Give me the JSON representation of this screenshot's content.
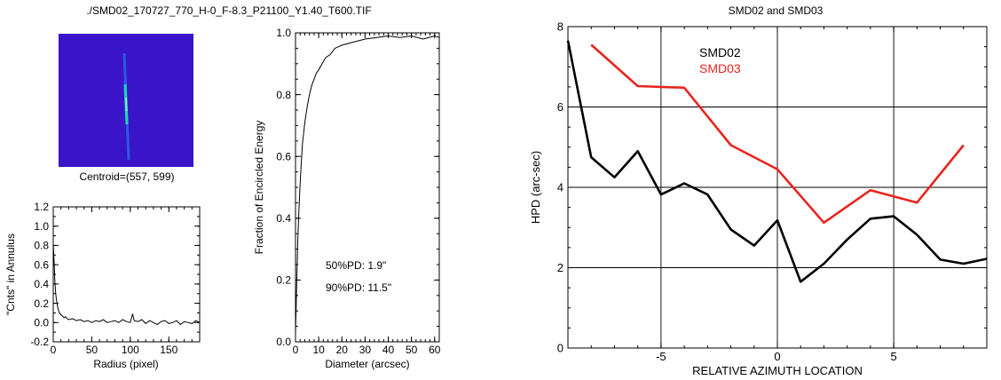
{
  "figure_title": "./SMD02_170727_770_H-0_F-8.3_P21100_Y1.40_T600.TIF",
  "image_panel": {
    "caption": "Centroid=(557, 599)",
    "colors": {
      "background": "#3a14c8",
      "streak": "#1fd6b4"
    }
  },
  "annotations": {
    "pd50": "50%PD:  1.9\"",
    "pd90": "90%PD: 11.5\""
  },
  "chart_data": [
    {
      "id": "annulus",
      "type": "line",
      "title": "",
      "xlabel": "Radius (pixel)",
      "ylabel": "\"Cnts\" in Annulus",
      "xlim": [
        0,
        190
      ],
      "ylim": [
        -0.2,
        1.2
      ],
      "xticks": [
        0,
        50,
        100,
        150
      ],
      "yticks": [
        -0.2,
        0.0,
        0.2,
        0.4,
        0.6,
        0.8,
        1.0,
        1.2
      ],
      "ytick_labels": [
        "-0.2",
        "0.0",
        "0.2",
        "0.4",
        "0.6",
        "0.8",
        "1.0",
        "1.2"
      ],
      "grid": false,
      "series": [
        {
          "color": "#000000",
          "x": [
            0,
            1,
            2,
            3,
            4,
            5,
            6,
            7,
            8,
            9,
            10,
            12,
            14,
            16,
            18,
            20,
            25,
            30,
            35,
            40,
            45,
            50,
            55,
            60,
            65,
            70,
            75,
            80,
            85,
            90,
            95,
            100,
            103,
            105,
            110,
            115,
            120,
            125,
            130,
            135,
            140,
            145,
            150,
            155,
            160,
            165,
            170,
            175,
            180,
            185,
            190
          ],
          "y": [
            0.82,
            0.65,
            0.45,
            0.32,
            0.24,
            0.2,
            0.15,
            0.12,
            0.1,
            0.09,
            0.08,
            0.07,
            0.05,
            0.06,
            0.04,
            0.03,
            0.04,
            0.02,
            0.03,
            0.01,
            0.02,
            0.0,
            0.02,
            0.01,
            0.03,
            0.0,
            0.01,
            0.02,
            0.0,
            0.03,
            0.01,
            0.0,
            0.09,
            0.02,
            0.01,
            0.03,
            -0.01,
            0.02,
            0.0,
            -0.02,
            0.01,
            0.02,
            -0.01,
            0.0,
            0.02,
            -0.02,
            0.01,
            0.0,
            -0.01,
            0.02,
            0.0
          ]
        }
      ]
    },
    {
      "id": "encircled",
      "type": "line",
      "title": "",
      "xlabel": "Diameter (arcsec)",
      "ylabel": "Fraction of Encircled Energy",
      "xlim": [
        0,
        62
      ],
      "ylim": [
        0.0,
        1.0
      ],
      "xticks": [
        0,
        10,
        20,
        30,
        40,
        50,
        60
      ],
      "yticks": [
        0.0,
        0.2,
        0.4,
        0.6,
        0.8,
        1.0
      ],
      "ytick_labels": [
        "0.0",
        "0.2",
        "0.4",
        "0.6",
        "0.8",
        "1.0"
      ],
      "grid": false,
      "series": [
        {
          "color": "#000000",
          "x": [
            0,
            0.3,
            0.6,
            1,
            1.5,
            1.9,
            2.5,
            3,
            4,
            5,
            6,
            7,
            8,
            9,
            10,
            11.5,
            13,
            15,
            17,
            20,
            25,
            30,
            35,
            40,
            45,
            50,
            55,
            60,
            62
          ],
          "y": [
            0.03,
            0.12,
            0.22,
            0.33,
            0.43,
            0.5,
            0.58,
            0.64,
            0.71,
            0.76,
            0.8,
            0.83,
            0.85,
            0.87,
            0.88,
            0.9,
            0.92,
            0.93,
            0.95,
            0.96,
            0.97,
            0.98,
            0.985,
            0.99,
            0.985,
            0.99,
            0.98,
            0.99,
            0.985
          ]
        }
      ]
    },
    {
      "id": "hpd",
      "type": "line",
      "title": "SMD02 and SMD03",
      "xlabel": "RELATIVE AZIMUTH LOCATION",
      "ylabel": "HPD (arc-sec)",
      "xlim": [
        -9,
        9
      ],
      "ylim": [
        0,
        8
      ],
      "xticks": [
        -5,
        0,
        5
      ],
      "yticks": [
        0,
        2,
        4,
        6,
        8
      ],
      "ytick_labels": [
        "0",
        "2",
        "4",
        "6",
        "8"
      ],
      "grid": true,
      "legend": "top-left",
      "series": [
        {
          "name": "SMD02",
          "color": "#000000",
          "x": [
            -9,
            -8,
            -7,
            -6,
            -5,
            -4,
            -3,
            -2,
            -1,
            0,
            1,
            2,
            3,
            4,
            5,
            6,
            7,
            8,
            9
          ],
          "y": [
            7.65,
            4.75,
            4.25,
            4.9,
            3.82,
            4.1,
            3.82,
            2.95,
            2.55,
            3.18,
            1.65,
            2.1,
            2.7,
            3.22,
            3.28,
            2.82,
            2.2,
            2.1,
            2.22
          ]
        },
        {
          "name": "SMD03",
          "color": "#e8251f",
          "x": [
            -8,
            -6,
            -4,
            -2,
            0,
            2,
            4,
            6,
            8
          ],
          "y": [
            7.55,
            6.52,
            6.48,
            5.05,
            4.45,
            3.12,
            3.93,
            3.62,
            5.05
          ]
        }
      ]
    }
  ]
}
